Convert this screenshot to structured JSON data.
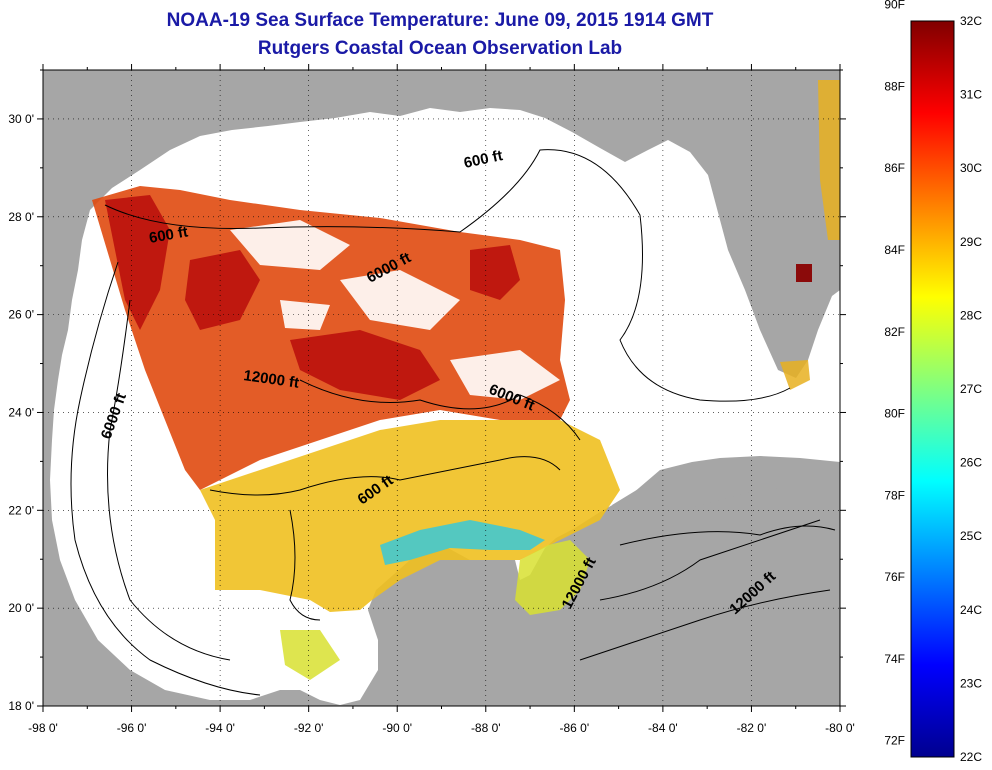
{
  "title": "NOAA-19 Sea Surface Temperature:  June 09, 2015 1914 GMT",
  "subtitle": "Rutgers Coastal Ocean Observation Lab",
  "map": {
    "lon_range": [
      -98,
      -80
    ],
    "lat_range": [
      18,
      31
    ],
    "x_ticks": [
      "-98 0'",
      "-96 0'",
      "-94 0'",
      "-92 0'",
      "-90 0'",
      "-88 0'",
      "-86 0'",
      "-84 0'",
      "-82 0'",
      "-80 0'"
    ],
    "y_ticks": [
      "30 0'",
      "28 0'",
      "26 0'",
      "24 0'",
      "22 0'",
      "20 0'",
      "18 0'"
    ],
    "land_color": "#a6a6a6",
    "ocean_nodata_color": "#ffffff",
    "grid": "dotted",
    "contour_labels": [
      "600 ft",
      "600 ft",
      "6000 ft",
      "6000 ft",
      "6000 ft",
      "12000 ft",
      "600 ft",
      "12000 ft",
      "12000 ft"
    ]
  },
  "colorbar": {
    "f_labels": [
      "90F",
      "88F",
      "86F",
      "84F",
      "82F",
      "80F",
      "78F",
      "76F",
      "74F",
      "72F"
    ],
    "c_labels": [
      "32C",
      "31C",
      "30C",
      "29C",
      "28C",
      "27C",
      "26C",
      "25C",
      "24C",
      "23C",
      "22C"
    ],
    "c_range": [
      22,
      32
    ],
    "colormap": [
      "#00008f",
      "#0000ff",
      "#0080ff",
      "#00ffff",
      "#80ff80",
      "#ffff00",
      "#ff8000",
      "#ff0000",
      "#800000"
    ]
  }
}
